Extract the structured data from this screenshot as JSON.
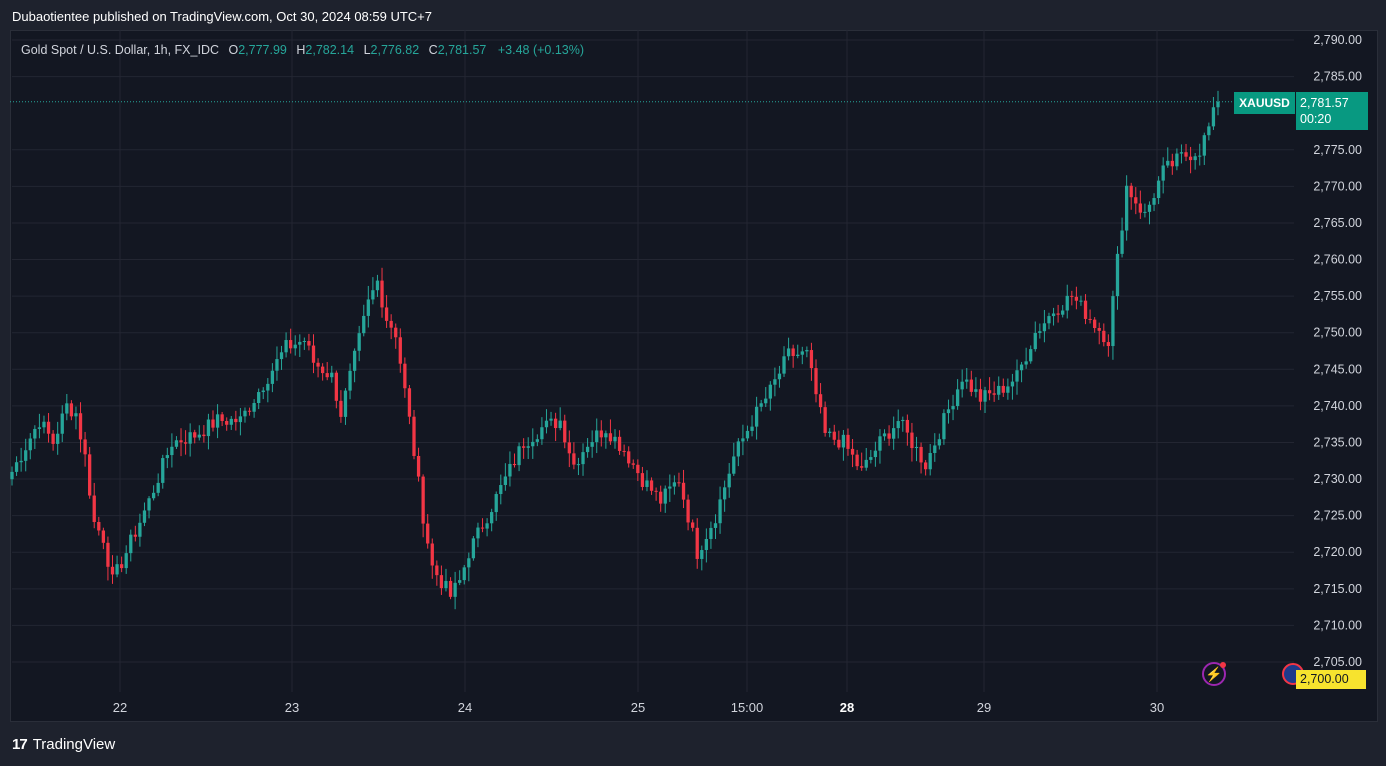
{
  "header": {
    "published": "Dubaotientee published on TradingView.com, Oct 30, 2024 08:59 UTC+7"
  },
  "legend": {
    "title": "Gold Spot / U.S. Dollar, 1h, FX_IDC",
    "o_label": "O",
    "o": "2,777.99",
    "h_label": "H",
    "h": "2,782.14",
    "l_label": "L",
    "l": "2,776.82",
    "c_label": "C",
    "c": "2,781.57",
    "change": "+3.48 (+0.13%)"
  },
  "price_tag": {
    "symbol": "XAUUSD",
    "price": "2,781.57",
    "countdown": "00:20"
  },
  "level_tag": "2,700.00",
  "footer": {
    "brand": "TradingView",
    "logo": "17"
  },
  "colors": {
    "up": "#26a69a",
    "down": "#f23645",
    "background": "#131722",
    "grid": "#232632"
  },
  "icons": {
    "alert": "lightning-icon",
    "flag": "us-flag-icon",
    "logo": "tradingview-logo-icon"
  },
  "chart_data": {
    "type": "candlestick",
    "symbol": "Gold Spot / U.S. Dollar",
    "interval": "1h",
    "ylim": [
      2705,
      2790
    ],
    "y_ticks": [
      "2,790.00",
      "2,785.00",
      "2,775.00",
      "2,770.00",
      "2,765.00",
      "2,760.00",
      "2,755.00",
      "2,750.00",
      "2,745.00",
      "2,740.00",
      "2,735.00",
      "2,730.00",
      "2,725.00",
      "2,720.00",
      "2,715.00",
      "2,710.00",
      "2,705.00"
    ],
    "x_ticks": [
      "22",
      "23",
      "24",
      "25",
      "15:00",
      "28",
      "29",
      "30"
    ],
    "last_price": 2781.57,
    "anchors": [
      [
        0,
        2731
      ],
      [
        6,
        2738
      ],
      [
        9,
        2735
      ],
      [
        12,
        2740
      ],
      [
        14,
        2739
      ],
      [
        16,
        2733
      ],
      [
        18,
        2724
      ],
      [
        20,
        2722
      ],
      [
        22,
        2716
      ],
      [
        25,
        2720
      ],
      [
        30,
        2727
      ],
      [
        35,
        2735
      ],
      [
        40,
        2736
      ],
      [
        45,
        2738
      ],
      [
        50,
        2738
      ],
      [
        55,
        2743
      ],
      [
        60,
        2748
      ],
      [
        64,
        2749
      ],
      [
        66,
        2746
      ],
      [
        70,
        2744
      ],
      [
        72,
        2739
      ],
      [
        78,
        2754
      ],
      [
        80,
        2757
      ],
      [
        82,
        2752
      ],
      [
        84,
        2750
      ],
      [
        87,
        2738
      ],
      [
        90,
        2725
      ],
      [
        92,
        2718
      ],
      [
        96,
        2714
      ],
      [
        98,
        2716
      ],
      [
        100,
        2720
      ],
      [
        104,
        2725
      ],
      [
        108,
        2730
      ],
      [
        112,
        2735
      ],
      [
        116,
        2737
      ],
      [
        120,
        2738
      ],
      [
        123,
        2732
      ],
      [
        126,
        2735
      ],
      [
        130,
        2737
      ],
      [
        134,
        2734
      ],
      [
        138,
        2730
      ],
      [
        142,
        2727
      ],
      [
        146,
        2730
      ],
      [
        150,
        2720
      ],
      [
        154,
        2725
      ],
      [
        158,
        2733
      ],
      [
        162,
        2738
      ],
      [
        166,
        2742
      ],
      [
        170,
        2747
      ],
      [
        174,
        2747
      ],
      [
        178,
        2736
      ],
      [
        182,
        2735
      ],
      [
        186,
        2731
      ],
      [
        190,
        2735
      ],
      [
        194,
        2738
      ],
      [
        198,
        2734
      ],
      [
        200,
        2732
      ],
      [
        204,
        2738
      ],
      [
        208,
        2744
      ],
      [
        212,
        2741
      ],
      [
        216,
        2742
      ],
      [
        220,
        2744
      ],
      [
        224,
        2750
      ],
      [
        228,
        2753
      ],
      [
        232,
        2755
      ],
      [
        236,
        2752
      ],
      [
        240,
        2749
      ],
      [
        242,
        2760
      ],
      [
        244,
        2770
      ],
      [
        248,
        2766
      ],
      [
        252,
        2772
      ],
      [
        256,
        2774
      ],
      [
        260,
        2775
      ],
      [
        262,
        2778
      ],
      [
        264,
        2781.57
      ]
    ]
  }
}
